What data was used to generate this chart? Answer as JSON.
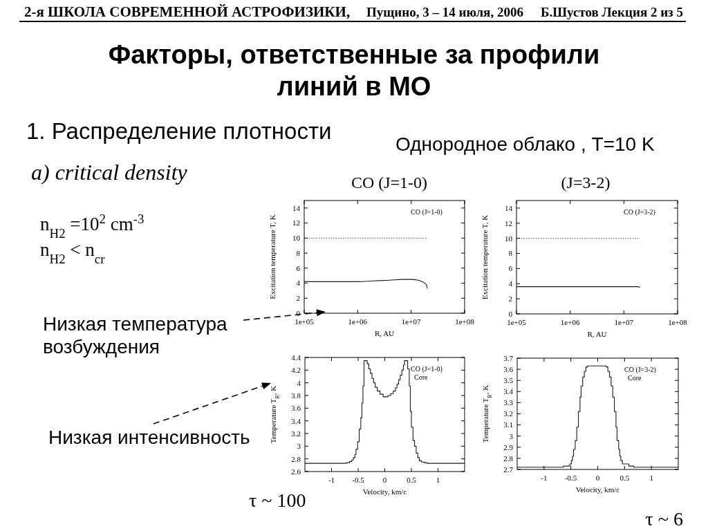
{
  "chart_data": [
    {
      "type": "other",
      "title": "Факторы, ответственные за профили линий в МО",
      "annotations": [
        "2-я ШКОЛА СОВРЕМЕННОЙ АСТРОФИЗИКИ,",
        "Пущино, 3 – 14 июля, 2006",
        "Б.Шустов Лекция 2 из 5",
        "1. Распределение плотности",
        "Однородное облако , T=10 K",
        "a) critical density",
        "n$_{H2}$ =10$^{2}$ cm$^{-3}$",
        "n$_{H2}$ < n$_{cr}$",
        "Низкая температура возбуждения",
        "Низкая интенсивность",
        "τ ~ 100",
        "τ ~ 6"
      ]
    },
    {
      "type": "line",
      "title": "CO (J=1-0)",
      "xlabel": "R, AU",
      "ylabel": "Excitation temperature T, K",
      "log": "x",
      "xlim": [
        100000,
        100000000
      ],
      "xticks": [
        {
          "value": 100000,
          "label": "1e+05"
        },
        {
          "value": 1000000,
          "label": "1e+06"
        },
        {
          "value": 10000000,
          "label": "1e+07"
        },
        {
          "value": 100000000,
          "label": "1e+08"
        }
      ],
      "ylim": [
        0,
        15
      ],
      "yticks": [
        0,
        2,
        4,
        6,
        8,
        10,
        12,
        14
      ],
      "annotations": [
        "CO (J=1-0)"
      ],
      "series": [
        {
          "color": "#1a1a1a",
          "x": [
            100000,
            1000000,
            2000000,
            4000000,
            7000000,
            10000000,
            13500000,
            16000000,
            18000000,
            19500000,
            20000000
          ],
          "values": [
            4.2,
            4.2,
            4.3,
            4.4,
            4.5,
            4.5,
            4.4,
            4.2,
            4.0,
            3.7,
            3.3
          ]
        },
        {
          "color": "#666666",
          "line_style": "dotted",
          "x": [
            100000,
            20000000
          ],
          "values": [
            10,
            10
          ]
        }
      ]
    },
    {
      "type": "line",
      "title": "(J=3-2)",
      "xlabel": "R, AU",
      "ylabel": "Excitation temperature T, K",
      "log": "x",
      "xlim": [
        100000,
        100000000
      ],
      "xticks": [
        {
          "value": 100000,
          "label": "1e+05"
        },
        {
          "value": 1000000,
          "label": "1e+06"
        },
        {
          "value": 10000000,
          "label": "1e+07"
        },
        {
          "value": 100000000,
          "label": "1e+08"
        }
      ],
      "ylim": [
        0,
        15
      ],
      "yticks": [
        0,
        2,
        4,
        6,
        8,
        10,
        12,
        14
      ],
      "annotations": [
        "CO (J=3-2)"
      ],
      "series": [
        {
          "color": "#1a1a1a",
          "x": [
            100000,
            1000000,
            10000000,
            18000000,
            20000000
          ],
          "values": [
            3.6,
            3.6,
            3.6,
            3.6,
            3.5
          ]
        },
        {
          "color": "#666666",
          "line_style": "dotted",
          "x": [
            100000,
            20000000
          ],
          "values": [
            10,
            10
          ]
        }
      ]
    },
    {
      "type": "step",
      "xlabel": "Velocity, km/c",
      "ylabel": "Temperature T$_{R}$, K",
      "xlim": [
        -1.5,
        1.5
      ],
      "xticks": [
        -1,
        -0.5,
        0,
        0.5,
        1
      ],
      "ylim": [
        2.6,
        4.4
      ],
      "yticks": [
        2.6,
        2.8,
        3,
        3.2,
        3.4,
        3.6,
        3.8,
        4,
        4.2,
        4.4
      ],
      "annotations": [
        "CO (J=1-0)",
        "Core"
      ],
      "series": [
        {
          "color": "#1a1a1a",
          "x": [
            -1.5,
            -0.72,
            -0.66,
            -0.62,
            -0.59,
            -0.56,
            -0.54,
            -0.51,
            -0.48,
            -0.45,
            -0.43,
            -0.41,
            -0.39,
            -0.33,
            -0.3,
            -0.27,
            -0.24,
            -0.21,
            -0.18,
            -0.14,
            -0.09,
            -0.03,
            0.06,
            0.11,
            0.16,
            0.2,
            0.23,
            0.26,
            0.29,
            0.32,
            0.35,
            0.37,
            0.43,
            0.46,
            0.48,
            0.5,
            0.53,
            0.56,
            0.59,
            0.62,
            0.65,
            0.69,
            0.74,
            0.79,
            1.5
          ],
          "values": [
            2.73,
            2.74,
            2.76,
            2.78,
            2.82,
            2.87,
            2.95,
            3.07,
            3.27,
            3.45,
            3.68,
            3.95,
            4.35,
            4.3,
            4.22,
            4.15,
            4.07,
            4,
            3.93,
            3.87,
            3.82,
            3.78,
            3.8,
            3.83,
            3.87,
            3.92,
            3.98,
            4.05,
            4.12,
            4.2,
            4.28,
            4.35,
            4.22,
            3.95,
            3.55,
            3.3,
            3.09,
            3,
            2.89,
            2.82,
            2.77,
            2.75,
            2.74,
            2.73,
            2.73
          ]
        }
      ]
    },
    {
      "type": "step",
      "xlabel": "Velocity, km/c",
      "ylabel": "Temperature T$_{R}$, K",
      "xlim": [
        -1.5,
        1.5
      ],
      "xticks": [
        -1,
        -0.5,
        0,
        0.5,
        1
      ],
      "ylim": [
        2.7,
        3.7
      ],
      "yticks": [
        2.7,
        2.8,
        2.9,
        3,
        3.1,
        3.2,
        3.3,
        3.4,
        3.5,
        3.6,
        3.7
      ],
      "annotations": [
        "CO (J=3-2)",
        "Core"
      ],
      "series": [
        {
          "color": "#1a1a1a",
          "x": [
            -1.5,
            -0.64,
            -0.52,
            -0.49,
            -0.47,
            -0.45,
            -0.42,
            -0.39,
            -0.36,
            -0.33,
            -0.31,
            -0.28,
            -0.25,
            -0.22,
            -0.19,
            0.16,
            0.19,
            0.22,
            0.25,
            0.28,
            0.31,
            0.34,
            0.36,
            0.39,
            0.41,
            0.43,
            0.46,
            0.58,
            0.67,
            1.5
          ],
          "values": [
            2.72,
            2.73,
            2.75,
            2.78,
            2.82,
            2.88,
            2.96,
            3.08,
            3.22,
            3.35,
            3.45,
            3.53,
            3.58,
            3.62,
            3.63,
            3.62,
            3.58,
            3.53,
            3.45,
            3.35,
            3.22,
            3.08,
            2.96,
            2.88,
            2.82,
            2.78,
            2.75,
            2.73,
            2.72,
            2.72
          ]
        }
      ]
    }
  ]
}
